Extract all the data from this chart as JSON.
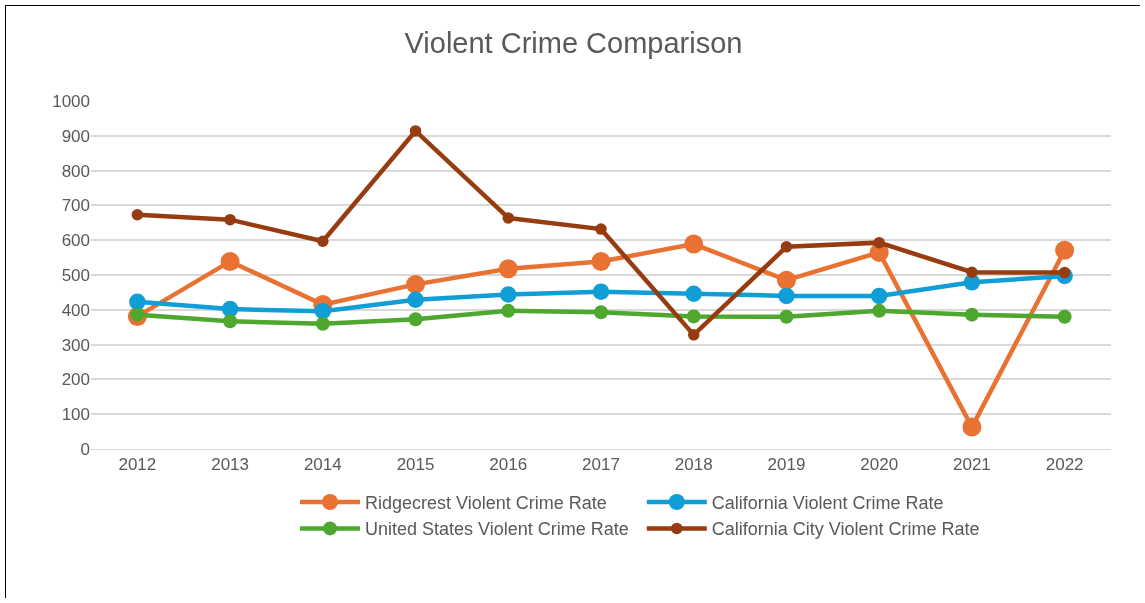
{
  "chart_data": {
    "type": "line",
    "title": "Violent Crime Comparison",
    "categories": [
      "2012",
      "2013",
      "2014",
      "2015",
      "2016",
      "2017",
      "2018",
      "2019",
      "2020",
      "2021",
      "2022"
    ],
    "series": [
      {
        "name": "Ridgecrest Violent Crime Rate",
        "color": "#e97132",
        "values": [
          381,
          539,
          415,
          473,
          518,
          539,
          589,
          485,
          565,
          63,
          571
        ]
      },
      {
        "name": "California Violent Crime Rate",
        "color": "#0f9ed5",
        "values": [
          423,
          402,
          396,
          429,
          444,
          452,
          446,
          440,
          440,
          479,
          497
        ]
      },
      {
        "name": "United States Violent Crime Rate",
        "color": "#4ea72e",
        "values": [
          386,
          367,
          360,
          373,
          397,
          393,
          381,
          380,
          397,
          386,
          380
        ]
      },
      {
        "name": "California City Violent Crime Rate",
        "color": "#963c10",
        "values": [
          673,
          659,
          597,
          914,
          664,
          632,
          328,
          581,
          593,
          508,
          507
        ]
      }
    ],
    "ylim": [
      0,
      1000
    ],
    "yticks": [
      0,
      100,
      200,
      300,
      400,
      500,
      600,
      700,
      800,
      900,
      1000
    ],
    "grid": "y",
    "legend": "bottom",
    "marker": "circle",
    "line_style": "solid"
  }
}
